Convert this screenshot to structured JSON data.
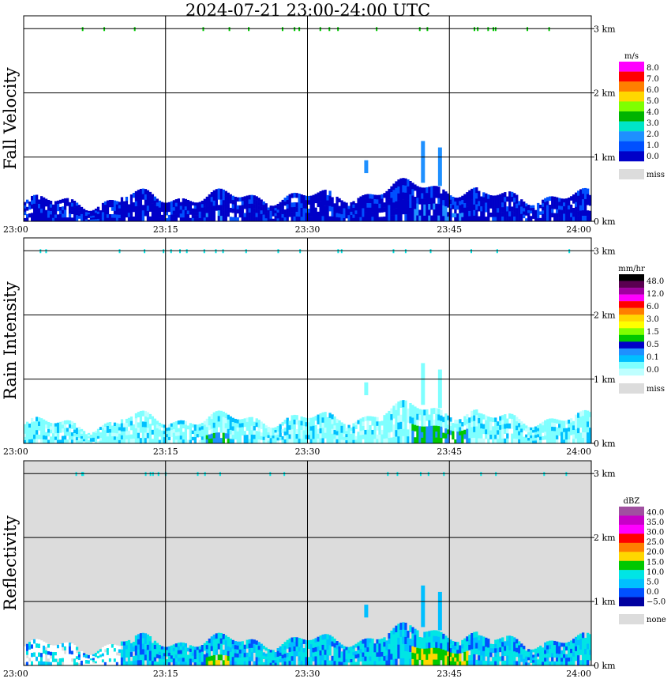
{
  "title": "2024-07-21   23:00-24:00 UTC",
  "time_ticks": [
    "23:00",
    "23:15",
    "23:30",
    "23:45",
    "24:00"
  ],
  "height_ticks": [
    "0 km",
    "1 km",
    "2 km",
    "3 km"
  ],
  "missing_label": "miss",
  "colors": {
    "frame": "#000000",
    "missing": "#dcdcdc"
  },
  "chart_data": [
    {
      "type": "heatmap",
      "title": "Fall Velocity",
      "x_range": [
        "23:00",
        "24:00"
      ],
      "y_range_km": [
        0,
        3
      ],
      "x_ticks": [
        "23:00",
        "23:15",
        "23:30",
        "23:45",
        "24:00"
      ],
      "y_ticks": [
        "0 km",
        "1 km",
        "2 km",
        "3 km"
      ],
      "grid": true,
      "colorbar": {
        "unit": "m/s",
        "labels": [
          "8.0",
          "7.0",
          "6.0",
          "5.0",
          "4.0",
          "3.0",
          "2.0",
          "1.0",
          "0.0"
        ],
        "colors": [
          "#ff00ff",
          "#ff0000",
          "#ff7f00",
          "#ffd700",
          "#7fff00",
          "#00b400",
          "#00e5c8",
          "#1e90ff",
          "#0050ff",
          "#0000c8"
        ],
        "missing_label": "miss"
      }
    },
    {
      "type": "heatmap",
      "title": "Rain Intensity",
      "x_range": [
        "23:00",
        "24:00"
      ],
      "y_range_km": [
        0,
        3
      ],
      "x_ticks": [
        "23:00",
        "23:15",
        "23:30",
        "23:45",
        "24:00"
      ],
      "y_ticks": [
        "0 km",
        "1 km",
        "2 km",
        "3 km"
      ],
      "grid": true,
      "colorbar": {
        "unit": "mm/hr",
        "labels": [
          "48.0",
          "12.0",
          "6.0",
          "3.0",
          "1.5",
          "0.5",
          "0.1",
          "0.0"
        ],
        "colors": [
          "#000000",
          "#5a0050",
          "#a000a0",
          "#ff00ff",
          "#ff0000",
          "#ff7f00",
          "#ffd700",
          "#ffff00",
          "#7fff00",
          "#00c800",
          "#0000c8",
          "#1e90ff",
          "#00bfff",
          "#7fffff",
          "#bfffff"
        ],
        "missing_label": "miss"
      }
    },
    {
      "type": "heatmap",
      "title": "Reflectivity",
      "x_range": [
        "23:00",
        "24:00"
      ],
      "y_range_km": [
        0,
        3
      ],
      "x_ticks": [
        "23:00",
        "23:15",
        "23:30",
        "23:45",
        "24:00"
      ],
      "y_ticks": [
        "0 km",
        "1 km",
        "2 km",
        "3 km"
      ],
      "grid": true,
      "colorbar": {
        "unit": "dBZ",
        "labels": [
          "40.0",
          "35.0",
          "30.0",
          "25.0",
          "20.0",
          "15.0",
          "10.0",
          "5.0",
          "0.0",
          "−5.0"
        ],
        "colors": [
          "#a050a0",
          "#c800c8",
          "#ff00ff",
          "#ff0000",
          "#ff7f00",
          "#ffd700",
          "#00c800",
          "#00e5e5",
          "#00bfff",
          "#0050ff",
          "#0000a0"
        ],
        "missing_label": "none"
      }
    }
  ]
}
